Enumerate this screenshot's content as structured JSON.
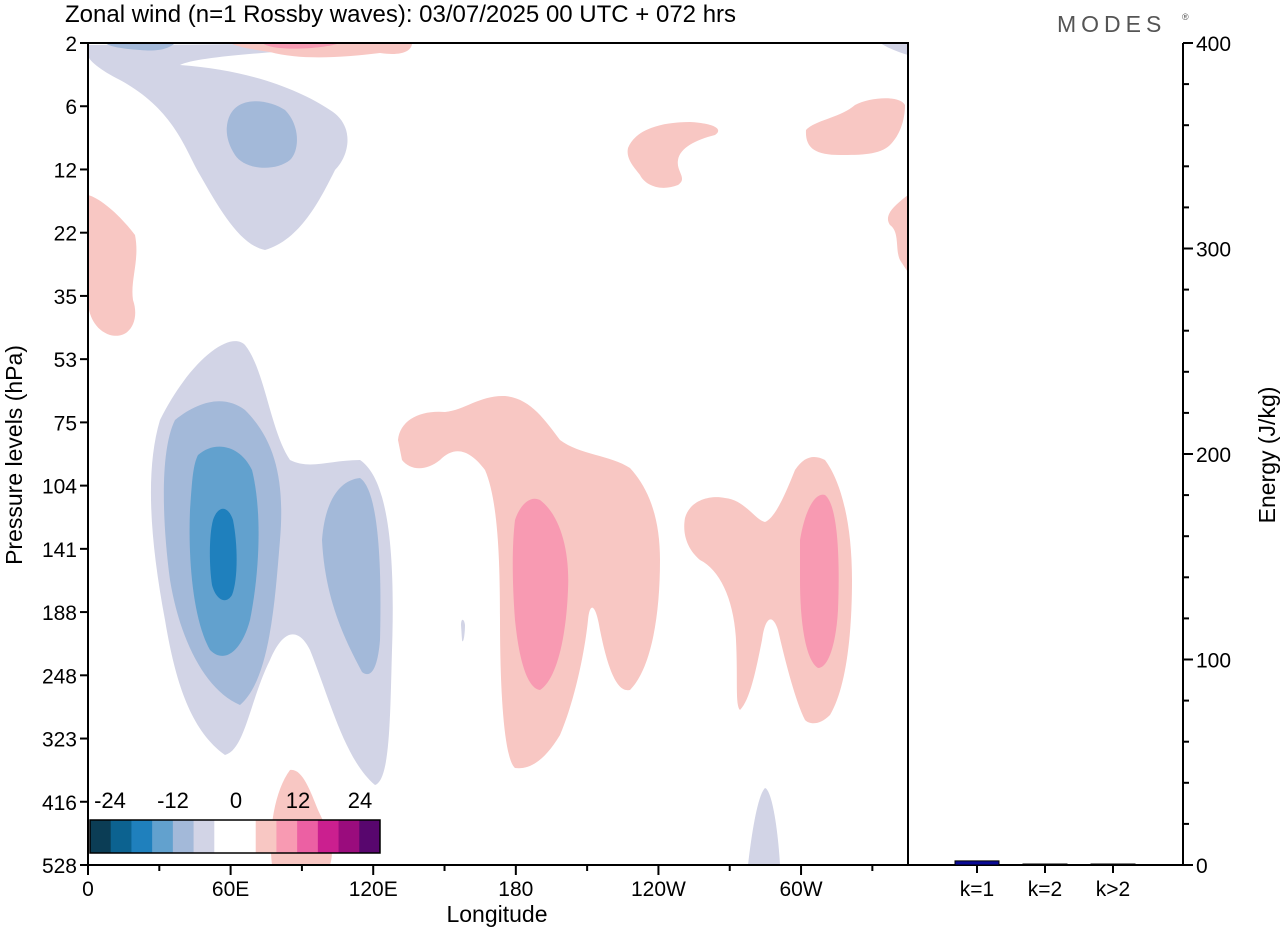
{
  "title": "Zonal wind (n=1 Rossby waves):  03/07/2025  00 UTC  + 072 hrs",
  "logo": "MODES",
  "logo_mark": "®",
  "colors": {
    "neg5": "#0b3d55",
    "neg4": "#0c6290",
    "neg3": "#1f80bd",
    "neg2": "#62a1ce",
    "neg1": "#a3b9d9",
    "neg0": "#d2d4e6",
    "zero": "#ffffff",
    "pos0": "#f8c7c3",
    "pos1": "#f89ab2",
    "pos2": "#ec60a3",
    "pos3": "#cb1f8f",
    "pos4": "#9a0c7d",
    "pos5": "#58066e",
    "bar": "#0a0a96"
  },
  "chart_data": [
    {
      "type": "heatmap",
      "subtype": "filled-contour",
      "xlabel": "Longitude",
      "ylabel": "Pressure levels (hPa)",
      "x_ticks": [
        "0",
        "60E",
        "120E",
        "180",
        "120W",
        "60W"
      ],
      "x_tick_degrees": [
        0,
        60,
        120,
        180,
        240,
        300
      ],
      "xlim": [
        0,
        345
      ],
      "y_ticks": [
        "2",
        "6",
        "12",
        "22",
        "35",
        "53",
        "75",
        "104",
        "141",
        "188",
        "248",
        "323",
        "416",
        "528"
      ],
      "colorbar": {
        "labels": [
          "-24",
          "-12",
          "0",
          "12",
          "24"
        ],
        "levels": [
          -30,
          -25,
          -20,
          -15,
          -10,
          -5,
          0,
          5,
          10,
          15,
          20,
          25,
          30
        ]
      },
      "features": [
        {
          "name": "negative-lower-main",
          "sign": "negative",
          "center_lon": 58,
          "center_level": "141",
          "min_value": -25
        },
        {
          "name": "negative-lower-east",
          "sign": "negative",
          "center_lon": 113,
          "center_level": "141",
          "min_value": -12
        },
        {
          "name": "negative-upper",
          "sign": "negative",
          "center_lon": 60,
          "center_level": "12",
          "min_value": -12
        },
        {
          "name": "positive-lower-180",
          "sign": "positive",
          "center_lon": 190,
          "center_level": "141",
          "max_value": 12
        },
        {
          "name": "positive-lower-60w",
          "sign": "positive",
          "center_lon": 310,
          "center_level": "141",
          "max_value": 12
        }
      ]
    },
    {
      "type": "bar",
      "title": "",
      "ylabel": "Energy (J/kg)",
      "ylim": [
        0,
        400
      ],
      "y_ticks": [
        "0",
        "100",
        "200",
        "300",
        "400"
      ],
      "categories": [
        "k=1",
        "k=2",
        "k>2"
      ],
      "values": [
        2,
        0.3,
        0.3
      ]
    }
  ]
}
